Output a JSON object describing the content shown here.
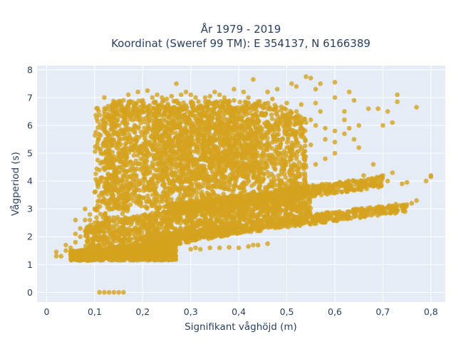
{
  "chart_data": {
    "type": "scatter",
    "title": "År 1979 - 2019",
    "subtitle": "Koordinat (Sweref 99 TM): E 354137, N 6166389",
    "xlabel": "Signifikant våghöjd (m)",
    "ylabel": "Vågperiod (s)",
    "xlim": [
      -0.02,
      0.83
    ],
    "ylim": [
      -0.35,
      8.15
    ],
    "x_ticks": [
      0,
      0.1,
      0.2,
      0.3,
      0.4,
      0.5,
      0.6,
      0.7,
      0.8
    ],
    "x_tick_labels": [
      "0",
      "0,1",
      "0,2",
      "0,3",
      "0,4",
      "0,5",
      "0,6",
      "0,7",
      "0,8"
    ],
    "y_ticks": [
      0,
      1,
      2,
      3,
      4,
      5,
      6,
      7,
      8
    ],
    "y_tick_labels": [
      "0",
      "1",
      "2",
      "3",
      "4",
      "5",
      "6",
      "7",
      "8"
    ],
    "grid": true,
    "legend": "none",
    "marker_color": "#d4a21e",
    "plot_bg": "#e5ecf6",
    "series": [
      {
        "values": [
          [
            0.11,
            0.0
          ],
          [
            0.12,
            0.0
          ],
          [
            0.13,
            0.0
          ],
          [
            0.14,
            0.0
          ],
          [
            0.15,
            0.0
          ],
          [
            0.16,
            0.0
          ],
          [
            0.02,
            1.3
          ],
          [
            0.02,
            1.45
          ],
          [
            0.03,
            1.3
          ],
          [
            0.04,
            1.5
          ],
          [
            0.05,
            1.4
          ],
          [
            0.05,
            1.6
          ],
          [
            0.06,
            1.8
          ],
          [
            0.07,
            2.0
          ],
          [
            0.07,
            2.3
          ],
          [
            0.08,
            2.6
          ],
          [
            0.09,
            2.8
          ],
          [
            0.06,
            2.6
          ],
          [
            0.06,
            2.1
          ],
          [
            0.08,
            3.0
          ],
          [
            0.04,
            1.7
          ],
          [
            0.09,
            2.2
          ],
          [
            0.12,
            7.0
          ],
          [
            0.14,
            6.8
          ],
          [
            0.16,
            6.9
          ],
          [
            0.17,
            7.1
          ],
          [
            0.19,
            7.2
          ],
          [
            0.21,
            7.25
          ],
          [
            0.23,
            7.1
          ],
          [
            0.27,
            7.5
          ],
          [
            0.29,
            7.2
          ],
          [
            0.33,
            7.0
          ],
          [
            0.35,
            7.2
          ],
          [
            0.36,
            7.1
          ],
          [
            0.39,
            7.3
          ],
          [
            0.41,
            7.2
          ],
          [
            0.43,
            7.65
          ],
          [
            0.46,
            7.2
          ],
          [
            0.48,
            7.3
          ],
          [
            0.51,
            7.5
          ],
          [
            0.52,
            7.4
          ],
          [
            0.54,
            7.75
          ],
          [
            0.55,
            7.7
          ],
          [
            0.56,
            7.3
          ],
          [
            0.57,
            7.5
          ],
          [
            0.6,
            7.55
          ],
          [
            0.6,
            7.0
          ],
          [
            0.62,
            6.5
          ],
          [
            0.63,
            7.2
          ],
          [
            0.64,
            6.9
          ],
          [
            0.67,
            6.6
          ],
          [
            0.69,
            6.6
          ],
          [
            0.65,
            6.0
          ],
          [
            0.62,
            6.2
          ],
          [
            0.55,
            6.2
          ],
          [
            0.57,
            6.5
          ],
          [
            0.52,
            6.5
          ],
          [
            0.7,
            6.0
          ],
          [
            0.71,
            6.5
          ],
          [
            0.72,
            6.1
          ],
          [
            0.73,
            7.1
          ],
          [
            0.73,
            6.85
          ],
          [
            0.77,
            6.65
          ],
          [
            0.68,
            4.6
          ],
          [
            0.66,
            4.2
          ],
          [
            0.7,
            4.2
          ],
          [
            0.71,
            4.0
          ],
          [
            0.72,
            4.3
          ],
          [
            0.74,
            3.9
          ],
          [
            0.75,
            3.95
          ],
          [
            0.79,
            4.0
          ],
          [
            0.8,
            4.2
          ],
          [
            0.8,
            4.15
          ],
          [
            0.72,
            3.1
          ],
          [
            0.74,
            3.1
          ],
          [
            0.76,
            3.2
          ],
          [
            0.77,
            3.3
          ],
          [
            0.7,
            3.0
          ],
          [
            0.72,
            3.05
          ],
          [
            0.42,
            1.65
          ],
          [
            0.43,
            1.7
          ],
          [
            0.4,
            1.6
          ],
          [
            0.38,
            1.62
          ],
          [
            0.36,
            1.6
          ],
          [
            0.34,
            1.6
          ],
          [
            0.46,
            1.75
          ],
          [
            0.44,
            1.7
          ],
          [
            0.3,
            1.55
          ],
          [
            0.31,
            1.6
          ],
          [
            0.32,
            1.55
          ],
          [
            0.11,
            4.4
          ],
          [
            0.11,
            4.0
          ],
          [
            0.1,
            3.6
          ],
          [
            0.11,
            3.3
          ],
          [
            0.12,
            3.8
          ],
          [
            0.13,
            5.2
          ],
          [
            0.13,
            5.0
          ],
          [
            0.12,
            5.4
          ],
          [
            0.14,
            6.0
          ],
          [
            0.15,
            6.4
          ],
          [
            0.15,
            5.6
          ],
          [
            0.16,
            6.6
          ],
          [
            0.14,
            5.8
          ],
          [
            0.12,
            6.5
          ],
          [
            0.13,
            6.3
          ],
          [
            0.1,
            3.0
          ],
          [
            0.09,
            2.6
          ],
          [
            0.1,
            2.5
          ],
          [
            0.2,
            6.9
          ],
          [
            0.22,
            7.0
          ],
          [
            0.24,
            7.0
          ],
          [
            0.25,
            6.95
          ],
          [
            0.26,
            7.05
          ],
          [
            0.28,
            7.1
          ],
          [
            0.3,
            7.1
          ],
          [
            0.31,
            7.0
          ],
          [
            0.34,
            7.05
          ],
          [
            0.37,
            7.0
          ],
          [
            0.39,
            6.9
          ],
          [
            0.42,
            7.0
          ],
          [
            0.44,
            6.85
          ],
          [
            0.47,
            6.95
          ],
          [
            0.5,
            6.8
          ],
          [
            0.53,
            6.75
          ],
          [
            0.56,
            6.8
          ],
          [
            0.46,
            6.6
          ],
          [
            0.48,
            6.5
          ],
          [
            0.5,
            6.4
          ],
          [
            0.52,
            6.3
          ],
          [
            0.54,
            6.1
          ],
          [
            0.56,
            6.0
          ],
          [
            0.58,
            5.9
          ],
          [
            0.6,
            5.8
          ],
          [
            0.62,
            5.7
          ],
          [
            0.58,
            5.5
          ],
          [
            0.6,
            5.4
          ],
          [
            0.55,
            5.3
          ],
          [
            0.53,
            5.6
          ],
          [
            0.5,
            5.8
          ],
          [
            0.47,
            5.9
          ],
          [
            0.63,
            5.9
          ],
          [
            0.64,
            5.5
          ],
          [
            0.65,
            5.2
          ],
          [
            0.6,
            5.0
          ],
          [
            0.58,
            4.8
          ],
          [
            0.56,
            4.6
          ],
          [
            0.54,
            4.5
          ],
          [
            0.52,
            4.8
          ],
          [
            0.5,
            5.2
          ],
          [
            0.48,
            5.0
          ],
          [
            0.46,
            5.4
          ]
        ]
      }
    ]
  }
}
